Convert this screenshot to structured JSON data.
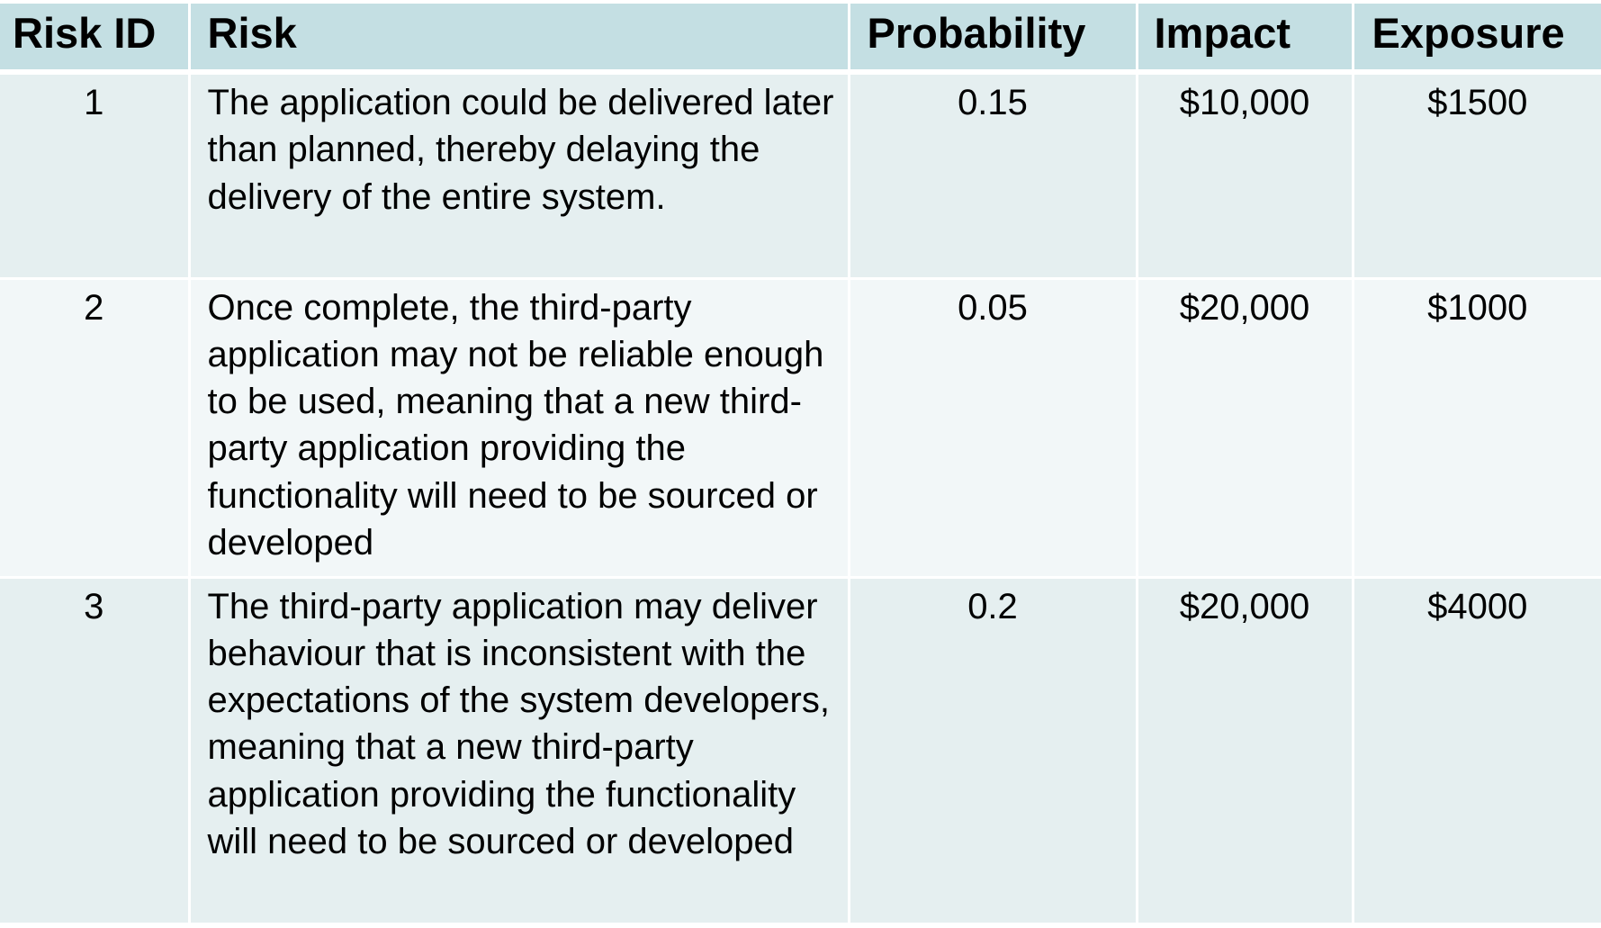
{
  "table": {
    "headers": {
      "risk_id": "Risk ID",
      "risk": "Risk",
      "probability": "Probability",
      "impact": "Impact",
      "exposure": "Exposure"
    },
    "rows": [
      {
        "risk_id": "1",
        "risk": "The application could be delivered later than planned, thereby delaying the delivery of the entire system.",
        "probability": "0.15",
        "impact": "$10,000",
        "exposure": "$1500"
      },
      {
        "risk_id": "2",
        "risk": "Once complete, the third-party application may not be reliable enough to be used, meaning that a new third-party application providing the functionality will need to be sourced or developed",
        "probability": "0.05",
        "impact": "$20,000",
        "exposure": "$1000"
      },
      {
        "risk_id": "3",
        "risk": "The third-party application may deliver behaviour that is inconsistent with the  expectations of the system developers, meaning that a new third-party application providing the functionality will need to be sourced or developed",
        "probability": "0.2",
        "impact": "$20,000",
        "exposure": "$4000"
      }
    ]
  },
  "colors": {
    "header_bg": "#c4dfe3",
    "row_odd_bg": "#e5eff0",
    "row_even_bg": "#f2f7f8",
    "grid_lines": "#ffffff"
  }
}
